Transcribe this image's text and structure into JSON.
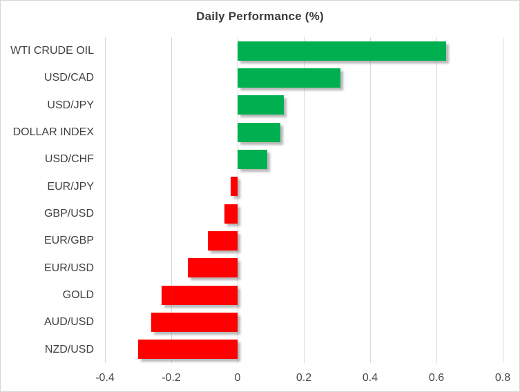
{
  "title": "Daily Performance (%)",
  "colors": {
    "positive": "#00B050",
    "negative": "#FF0000",
    "gridline": "#D9D9D9",
    "text": "#404040",
    "border": "#D6D6D6",
    "background": "#FFFFFF"
  },
  "chart_data": {
    "type": "bar",
    "orientation": "horizontal",
    "title": "Daily Performance (%)",
    "categories": [
      "WTI CRUDE OIL",
      "USD/CAD",
      "USD/JPY",
      "DOLLAR INDEX",
      "USD/CHF",
      "EUR/JPY",
      "GBP/USD",
      "EUR/GBP",
      "EUR/USD",
      "GOLD",
      "AUD/USD",
      "NZD/USD"
    ],
    "values": [
      0.63,
      0.31,
      0.14,
      0.13,
      0.09,
      -0.02,
      -0.04,
      -0.09,
      -0.15,
      -0.23,
      -0.26,
      -0.3
    ],
    "xlabel": "",
    "ylabel": "",
    "xlim": [
      -0.4,
      0.8
    ],
    "xticks": [
      -0.4,
      -0.2,
      0,
      0.2,
      0.4,
      0.6,
      0.8
    ],
    "xtick_labels": [
      "-0.4",
      "-0.2",
      "0",
      "0.2",
      "0.4",
      "0.6",
      "0.8"
    ],
    "grid": "vertical",
    "legend": "none",
    "positive_color": "#00B050",
    "negative_color": "#FF0000"
  }
}
